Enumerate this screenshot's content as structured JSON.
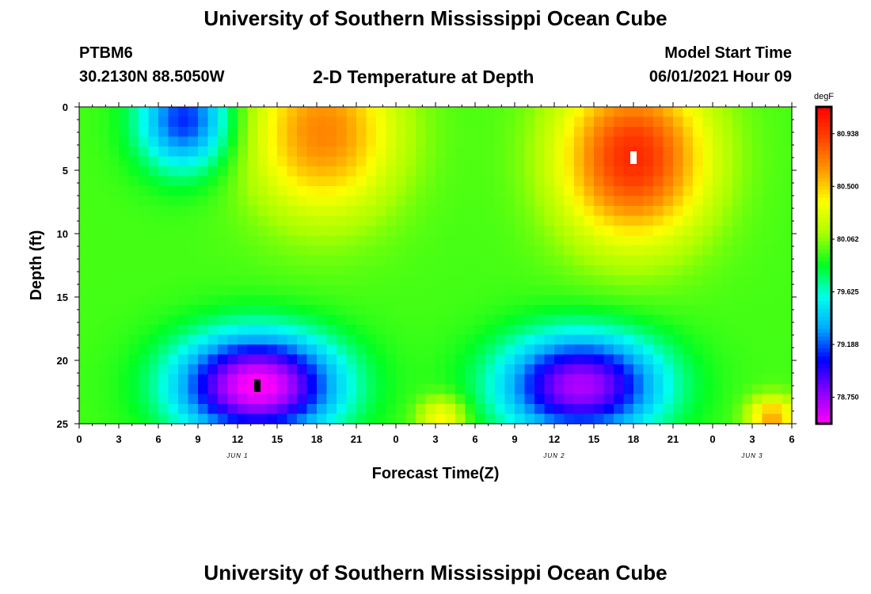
{
  "header": {
    "title": "University of Southern Mississippi Ocean Cube",
    "station": "PTBM6",
    "coords": "30.2130N  88.5050W",
    "subtitle": "2-D Temperature at Depth",
    "model_start_label": "Model Start Time",
    "model_start_value": "06/01/2021 Hour 09"
  },
  "footer": {
    "title": "University of Southern Mississippi Ocean Cube"
  },
  "chart_data": {
    "type": "heatmap",
    "title": "2-D Temperature at Depth",
    "xlabel": "Forecast Time(Z)",
    "ylabel": "Depth (ft)",
    "x_ticks": [
      "0",
      "3",
      "6",
      "9",
      "12",
      "15",
      "18",
      "21",
      "0",
      "3",
      "6",
      "9",
      "12",
      "15",
      "18",
      "21",
      "0",
      "3",
      "6"
    ],
    "x_tick_hours": [
      0,
      3,
      6,
      9,
      12,
      15,
      18,
      21,
      24,
      27,
      30,
      33,
      36,
      39,
      42,
      45,
      48,
      51,
      54
    ],
    "xlim": [
      0,
      54
    ],
    "date_labels": [
      {
        "text": "JUN 1",
        "hour": 12
      },
      {
        "text": "JUN 2",
        "hour": 36
      },
      {
        "text": "JUN 3",
        "hour": 51
      }
    ],
    "y_ticks": [
      "0",
      "5",
      "10",
      "15",
      "20",
      "25"
    ],
    "y_tick_values": [
      0,
      5,
      10,
      15,
      20,
      25
    ],
    "ylim": [
      0,
      25
    ],
    "y_inverted": true,
    "colorbar": {
      "unit": "degF",
      "labels": [
        "80.938",
        "80.500",
        "80.062",
        "79.625",
        "79.188",
        "78.750"
      ],
      "values": [
        80.938,
        80.5,
        80.062,
        79.625,
        79.188,
        78.75
      ],
      "min": 78.53,
      "max": 81.16,
      "colors": [
        "#ff00ff",
        "#8800ff",
        "#0000ff",
        "#00aaff",
        "#00ffee",
        "#00ff22",
        "#aaff00",
        "#ffff00",
        "#ff9900",
        "#ff4400",
        "#ff0000"
      ]
    },
    "temperature_features": [
      {
        "kind": "warm",
        "hour": 18.5,
        "depth": 2,
        "value": 80.7,
        "note": "surface warm lobe"
      },
      {
        "kind": "warm",
        "hour": 42,
        "depth": 4,
        "value": 81.0,
        "note": "surface warm core"
      },
      {
        "kind": "cold",
        "hour": 8,
        "depth": 1,
        "value": 79.1,
        "note": "surface cool patch"
      },
      {
        "kind": "cold",
        "hour": 13.5,
        "depth": 22,
        "value": 78.5,
        "note": "bottom cold core"
      },
      {
        "kind": "cold",
        "hour": 38,
        "depth": 22,
        "value": 78.7,
        "note": "bottom cold core"
      },
      {
        "kind": "warm",
        "hour": 27.5,
        "depth": 24.5,
        "value": 80.4,
        "note": "bottom warm spot"
      },
      {
        "kind": "warm",
        "hour": 52.5,
        "depth": 24.5,
        "value": 80.6,
        "note": "bottom warm spot"
      }
    ],
    "markers": [
      {
        "hour": 42,
        "depth": 4,
        "color": "#ffffff"
      },
      {
        "hour": 13.5,
        "depth": 22,
        "color": "#000000"
      }
    ]
  }
}
